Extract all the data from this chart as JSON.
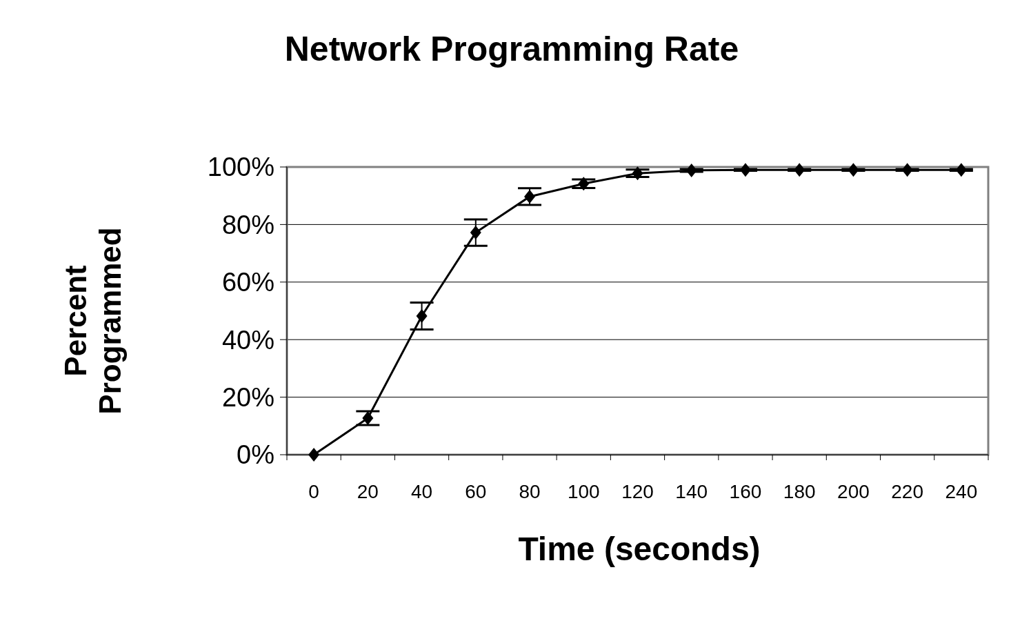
{
  "chart_data": {
    "type": "line",
    "title": "Network Programming Rate",
    "xlabel": "Time (seconds)",
    "ylabel": "Percent Programmed",
    "categories": [
      "0",
      "20",
      "40",
      "60",
      "80",
      "100",
      "120",
      "140",
      "160",
      "180",
      "200",
      "220",
      "240"
    ],
    "series": [
      {
        "color": "#000000",
        "values": [
          0,
          12.7,
          48.2,
          77.2,
          89.7,
          94.2,
          97.8,
          98.8,
          99,
          99,
          99,
          99,
          99
        ],
        "errors": [
          null,
          2.4,
          4.7,
          4.6,
          2.9,
          1.5,
          1.3,
          0.5,
          0.3,
          0.3,
          0.3,
          0.3,
          0.3
        ]
      }
    ],
    "ylim": [
      0,
      100
    ],
    "yticks": [
      {
        "value": 0,
        "label": "0%"
      },
      {
        "value": 20,
        "label": "20%"
      },
      {
        "value": 40,
        "label": "40%"
      },
      {
        "value": 60,
        "label": "60%"
      },
      {
        "value": 80,
        "label": "80%"
      },
      {
        "value": 100,
        "label": "100%"
      }
    ],
    "grid": "y",
    "marker": "diamond",
    "line_style": "solid"
  }
}
